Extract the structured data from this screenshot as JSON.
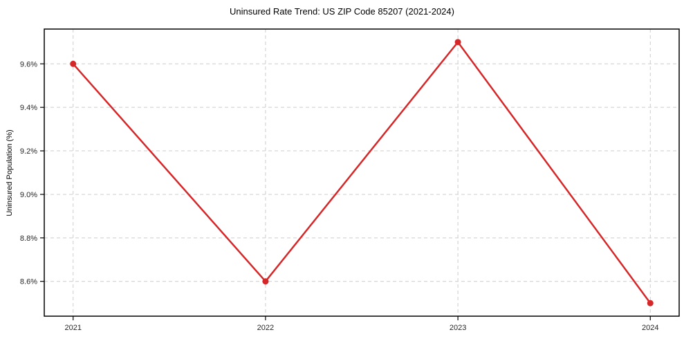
{
  "chart_data": {
    "type": "line",
    "title": "Uninsured Rate Trend: US ZIP Code 85207 (2021-2024)",
    "xlabel": "",
    "ylabel": "Uninsured Population (%)",
    "x": [
      2021,
      2022,
      2023,
      2024
    ],
    "values": [
      9.6,
      8.6,
      9.7,
      8.5
    ],
    "xticks": [
      2021,
      2022,
      2023,
      2024
    ],
    "xtick_labels": [
      "2021",
      "2022",
      "2023",
      "2024"
    ],
    "yticks": [
      8.6,
      8.8,
      9.0,
      9.2,
      9.4,
      9.6
    ],
    "ytick_labels": [
      "8.6%",
      "8.8%",
      "9.0%",
      "9.2%",
      "9.4%",
      "9.6%"
    ],
    "xlim": [
      2020.85,
      2024.15
    ],
    "ylim": [
      8.44,
      9.76
    ],
    "grid": true,
    "grid_style": "dashed",
    "legend": false,
    "line_color": "#d62728",
    "marker": "circle",
    "marker_radius": 4.5,
    "line_width": 2.5,
    "grid_color": "#cccccc",
    "axis_color": "#000000",
    "text_color": "#262626"
  }
}
